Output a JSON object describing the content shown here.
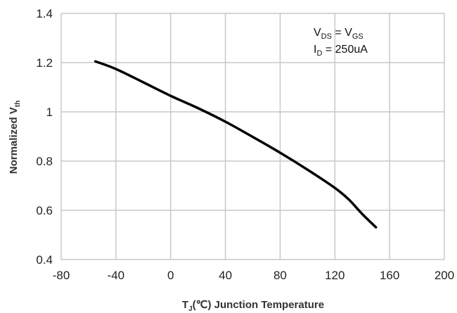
{
  "chart_data": {
    "type": "line",
    "title": "",
    "xlabel": "T_J(℃) Junction Temperature",
    "xlabel_parts": {
      "main": "T",
      "sub": "J",
      "rest": "(℃) Junction Temperature"
    },
    "ylabel": "Normalized V_th",
    "ylabel_parts": {
      "main": "Normalized V",
      "sub": "th"
    },
    "xlim": [
      -80,
      200
    ],
    "ylim": [
      0.4,
      1.4
    ],
    "xticks": [
      -80,
      -40,
      0,
      40,
      80,
      120,
      160,
      200
    ],
    "yticks": [
      0.4,
      0.6,
      0.8,
      1,
      1.2,
      1.4
    ],
    "xtick_labels": [
      "-80",
      "-40",
      "0",
      "40",
      "80",
      "120",
      "160",
      "200"
    ],
    "ytick_labels": [
      "0.4",
      "0.6",
      "0.8",
      "1",
      "1.2",
      "1.4"
    ],
    "grid": true,
    "line_color": "#000000",
    "grid_color": "#c8c8c8",
    "annotation": {
      "line1": {
        "a": "V",
        "a_sub": "DS",
        "eq": " = V",
        "b_sub": "GS"
      },
      "line2": {
        "a": "I",
        "a_sub": "D",
        "rest": " = 250uA"
      }
    },
    "series": [
      {
        "x": [
          -55,
          -40,
          -20,
          0,
          20,
          40,
          60,
          80,
          100,
          120,
          130,
          140,
          150
        ],
        "y": [
          1.205,
          1.174,
          1.12,
          1.065,
          1.015,
          0.96,
          0.898,
          0.834,
          0.765,
          0.691,
          0.645,
          0.585,
          0.531
        ]
      }
    ]
  }
}
